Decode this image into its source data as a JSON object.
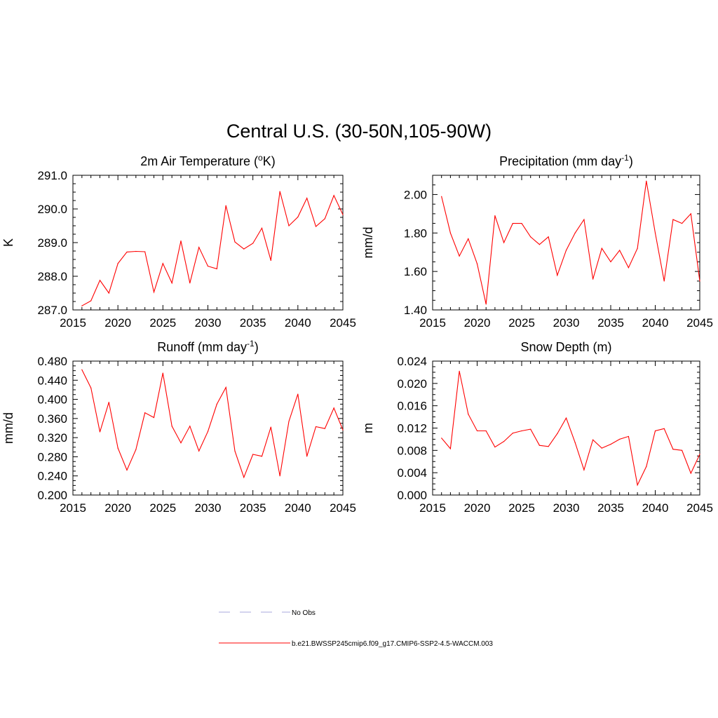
{
  "title": "Central U.S. (30-50N,105-90W)",
  "legend": [
    {
      "label": "No Obs",
      "color": "#aaaadd",
      "style": "dashed"
    },
    {
      "label": "b.e21.BWSSP245cmip6.f09_g17.CMIP6-SSP2-4.5-WACCM.003",
      "color": "#ff0000",
      "style": "solid"
    }
  ],
  "chart_data": [
    {
      "type": "line",
      "title": "2m Air Temperature (°K)",
      "title_base": "2m Air Temperature (",
      "title_sup": "o",
      "title_tail": "K)",
      "ylabel": "K",
      "xlim": [
        2015,
        2045
      ],
      "ylim": [
        287.0,
        291.0
      ],
      "xticks": [
        2015,
        2020,
        2025,
        2030,
        2035,
        2040,
        2045
      ],
      "yticks": [
        "287.0",
        "288.0",
        "289.0",
        "290.0",
        "291.0"
      ],
      "x": [
        2016,
        2017,
        2018,
        2019,
        2020,
        2021,
        2022,
        2023,
        2024,
        2025,
        2026,
        2027,
        2028,
        2029,
        2030,
        2031,
        2032,
        2033,
        2034,
        2035,
        2036,
        2037,
        2038,
        2039,
        2040,
        2041,
        2042,
        2043,
        2044,
        2045
      ],
      "series": [
        {
          "color": "#ff0000",
          "values": [
            287.12,
            287.27,
            287.88,
            287.5,
            288.38,
            288.72,
            288.74,
            288.73,
            287.53,
            288.38,
            287.8,
            289.05,
            287.8,
            288.86,
            288.3,
            288.22,
            290.1,
            289.02,
            288.81,
            288.98,
            289.43,
            288.47,
            290.52,
            289.5,
            289.76,
            290.32,
            289.48,
            289.71,
            290.4,
            289.83
          ]
        }
      ]
    },
    {
      "type": "line",
      "title": "Precipitation (mm day-1)",
      "title_base": "Precipitation (mm day",
      "title_sup": "-1",
      "title_tail": ")",
      "ylabel": "mm/d",
      "xlim": [
        2015,
        2045
      ],
      "ylim": [
        1.4,
        2.1
      ],
      "xticks": [
        2015,
        2020,
        2025,
        2030,
        2035,
        2040,
        2045
      ],
      "yticks": [
        "1.40",
        "1.60",
        "1.80",
        "2.00"
      ],
      "x": [
        2016,
        2017,
        2018,
        2019,
        2020,
        2021,
        2022,
        2023,
        2024,
        2025,
        2026,
        2027,
        2028,
        2029,
        2030,
        2031,
        2032,
        2033,
        2034,
        2035,
        2036,
        2037,
        2038,
        2039,
        2040,
        2041,
        2042,
        2043,
        2044,
        2045
      ],
      "series": [
        {
          "color": "#ff0000",
          "values": [
            1.99,
            1.8,
            1.68,
            1.77,
            1.64,
            1.43,
            1.89,
            1.75,
            1.85,
            1.85,
            1.78,
            1.74,
            1.78,
            1.58,
            1.71,
            1.8,
            1.87,
            1.56,
            1.72,
            1.65,
            1.71,
            1.62,
            1.72,
            2.07,
            1.8,
            1.55,
            1.87,
            1.85,
            1.9,
            1.55
          ]
        }
      ]
    },
    {
      "type": "line",
      "title": "Runoff (mm day-1)",
      "title_base": "Runoff (mm day",
      "title_sup": "-1",
      "title_tail": ")",
      "ylabel": "mm/d",
      "xlim": [
        2015,
        2045
      ],
      "ylim": [
        0.2,
        0.48
      ],
      "xticks": [
        2015,
        2020,
        2025,
        2030,
        2035,
        2040,
        2045
      ],
      "yticks": [
        "0.200",
        "0.240",
        "0.280",
        "0.320",
        "0.360",
        "0.400",
        "0.440",
        "0.480"
      ],
      "x": [
        2016,
        2017,
        2018,
        2019,
        2020,
        2021,
        2022,
        2023,
        2024,
        2025,
        2026,
        2027,
        2028,
        2029,
        2030,
        2031,
        2032,
        2033,
        2034,
        2035,
        2036,
        2037,
        2038,
        2039,
        2040,
        2041,
        2042,
        2043,
        2044,
        2045
      ],
      "series": [
        {
          "color": "#ff0000",
          "values": [
            0.462,
            0.424,
            0.332,
            0.394,
            0.298,
            0.252,
            0.295,
            0.372,
            0.362,
            0.455,
            0.344,
            0.309,
            0.344,
            0.292,
            0.333,
            0.39,
            0.425,
            0.292,
            0.237,
            0.285,
            0.281,
            0.342,
            0.24,
            0.354,
            0.411,
            0.281,
            0.343,
            0.339,
            0.382,
            0.336
          ]
        }
      ]
    },
    {
      "type": "line",
      "title": "Snow Depth (m)",
      "title_base": "Snow Depth (m)",
      "title_sup": "",
      "title_tail": "",
      "ylabel": "m",
      "xlim": [
        2015,
        2045
      ],
      "ylim": [
        0.0,
        0.024
      ],
      "xticks": [
        2015,
        2020,
        2025,
        2030,
        2035,
        2040,
        2045
      ],
      "yticks": [
        "0.000",
        "0.004",
        "0.008",
        "0.012",
        "0.016",
        "0.020",
        "0.024"
      ],
      "x": [
        2016,
        2017,
        2018,
        2019,
        2020,
        2021,
        2022,
        2023,
        2024,
        2025,
        2026,
        2027,
        2028,
        2029,
        2030,
        2031,
        2032,
        2033,
        2034,
        2035,
        2036,
        2037,
        2038,
        2039,
        2040,
        2041,
        2042,
        2043,
        2044,
        2045
      ],
      "series": [
        {
          "color": "#ff0000",
          "values": [
            0.0102,
            0.0083,
            0.0222,
            0.0145,
            0.0115,
            0.0115,
            0.0086,
            0.0096,
            0.0111,
            0.0115,
            0.0118,
            0.0089,
            0.0087,
            0.011,
            0.0138,
            0.0094,
            0.0045,
            0.0099,
            0.0084,
            0.0091,
            0.01,
            0.0105,
            0.0018,
            0.0051,
            0.0115,
            0.0119,
            0.0082,
            0.008,
            0.0039,
            0.0073
          ]
        }
      ]
    }
  ]
}
